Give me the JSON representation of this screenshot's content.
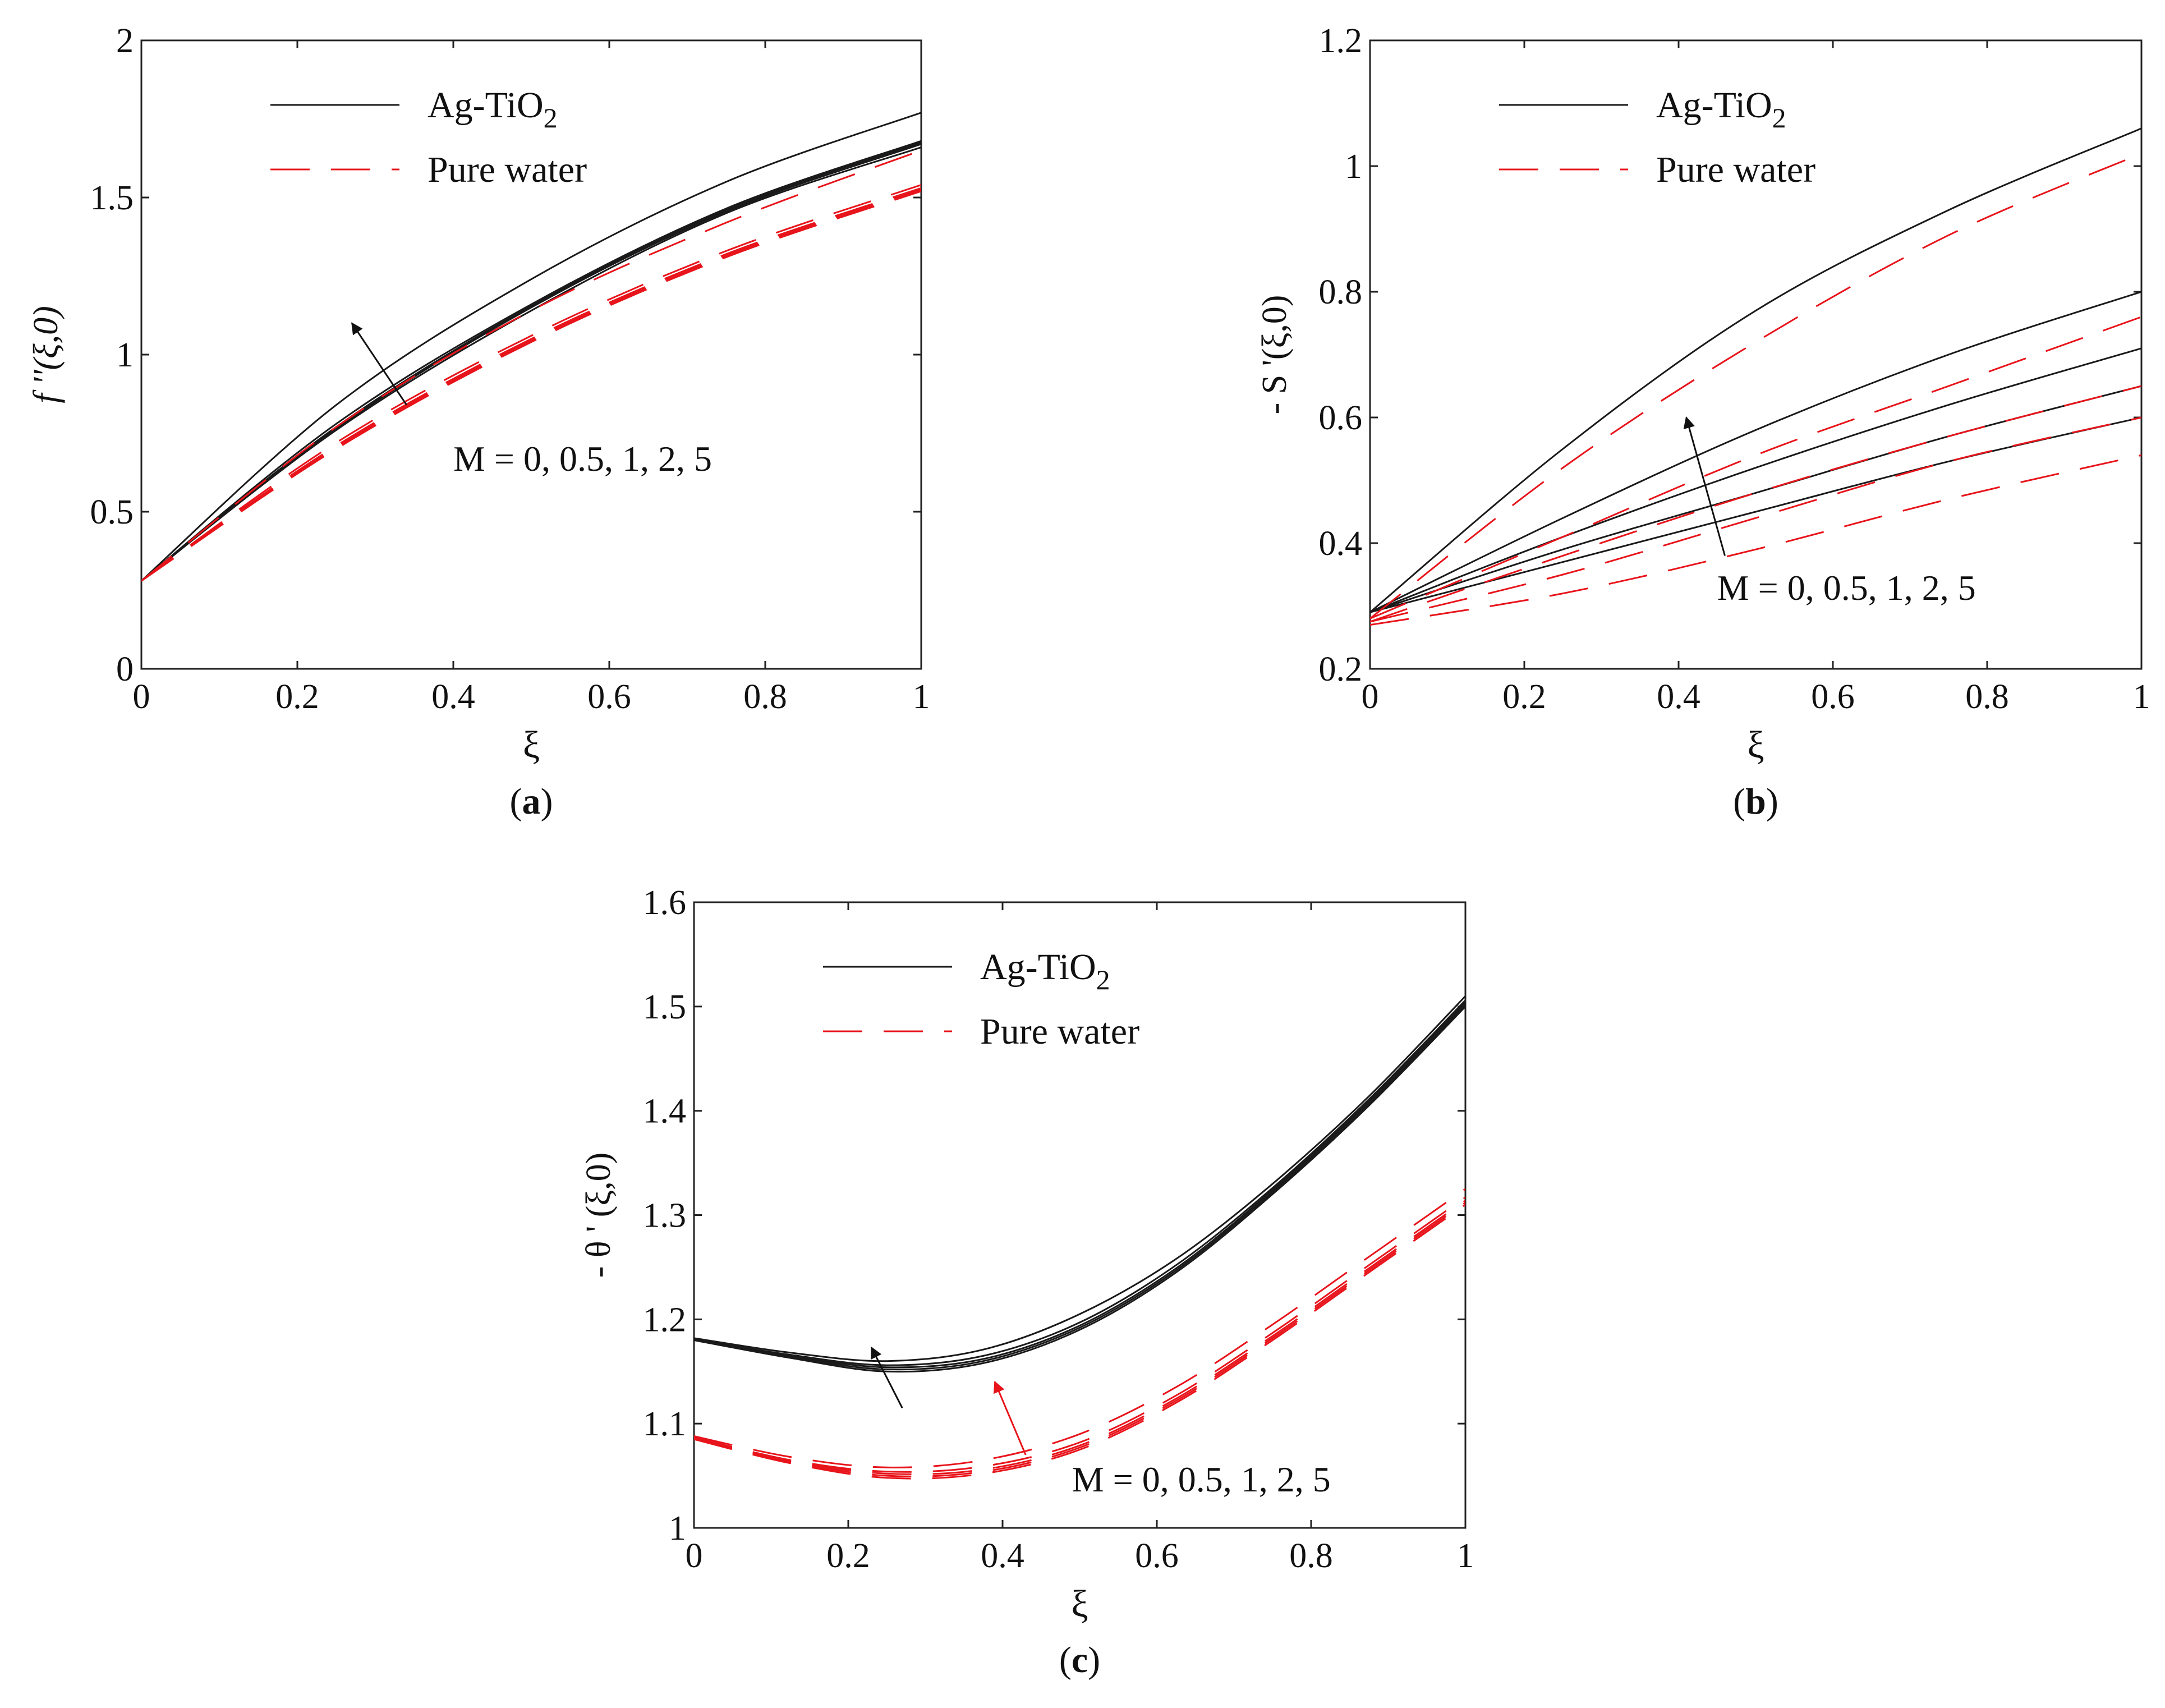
{
  "colors": {
    "nanofluid": "#1a1a1a",
    "water": "#e8141b",
    "arrow_black": "#111111",
    "arrow_red": "#e8141b",
    "axis": "#222222"
  },
  "chart_data": [
    {
      "id": "a",
      "type": "line",
      "panel_label": "a",
      "xlabel": "ξ",
      "ylabel": "f ''(ξ,0)",
      "xlim": [
        0,
        1
      ],
      "ylim": [
        0,
        2
      ],
      "xticks": [
        0,
        0.2,
        0.4,
        0.6,
        0.8,
        1
      ],
      "xtick_labels": [
        "0",
        "0.2",
        "0.4",
        "0.6",
        "0.8",
        "1"
      ],
      "yticks": [
        0,
        0.5,
        1,
        1.5,
        2
      ],
      "ytick_labels": [
        "0",
        "0.5",
        "1",
        "1.5",
        "2"
      ],
      "legend": [
        {
          "text": "Ag-TiO",
          "sub": "2",
          "style": "solid"
        },
        {
          "text": "Pure water",
          "style": "dashed"
        }
      ],
      "annotation": "M = 0, 0.5, 1, 2, 5",
      "x": [
        0,
        0.25,
        0.5,
        0.75,
        1
      ],
      "series": [
        {
          "name": "Ag-TiO2, M=0",
          "group": "nanofluid",
          "values": [
            0.28,
            0.76,
            1.14,
            1.45,
            1.66
          ]
        },
        {
          "name": "Ag-TiO2, M=0.5",
          "group": "nanofluid",
          "values": [
            0.28,
            0.765,
            1.15,
            1.455,
            1.67
          ]
        },
        {
          "name": "Ag-TiO2, M=1",
          "group": "nanofluid",
          "values": [
            0.28,
            0.77,
            1.155,
            1.46,
            1.675
          ]
        },
        {
          "name": "Ag-TiO2, M=2",
          "group": "nanofluid",
          "values": [
            0.28,
            0.78,
            1.16,
            1.465,
            1.68
          ]
        },
        {
          "name": "Ag-TiO2, M=5",
          "group": "nanofluid",
          "values": [
            0.28,
            0.84,
            1.24,
            1.55,
            1.77
          ]
        },
        {
          "name": "Pure water, M=0",
          "group": "water",
          "values": [
            0.28,
            0.7,
            1.04,
            1.31,
            1.52
          ]
        },
        {
          "name": "Pure water, M=0.5",
          "group": "water",
          "values": [
            0.28,
            0.705,
            1.045,
            1.315,
            1.525
          ]
        },
        {
          "name": "Pure water, M=1",
          "group": "water",
          "values": [
            0.28,
            0.71,
            1.05,
            1.32,
            1.53
          ]
        },
        {
          "name": "Pure water, M=2",
          "group": "water",
          "values": [
            0.28,
            0.72,
            1.06,
            1.33,
            1.54
          ]
        },
        {
          "name": "Pure water, M=5",
          "group": "water",
          "values": [
            0.28,
            0.77,
            1.14,
            1.42,
            1.65
          ]
        }
      ],
      "arrow": {
        "from": [
          0.34,
          0.84
        ],
        "to": [
          0.27,
          1.1
        ],
        "color": "arrow_black"
      }
    },
    {
      "id": "b",
      "type": "line",
      "panel_label": "b",
      "xlabel": "ξ",
      "ylabel": "- S '(ξ,0)",
      "xlim": [
        0,
        1
      ],
      "ylim": [
        0.2,
        1.2
      ],
      "xticks": [
        0,
        0.2,
        0.4,
        0.6,
        0.8,
        1
      ],
      "xtick_labels": [
        "0",
        "0.2",
        "0.4",
        "0.6",
        "0.8",
        "1"
      ],
      "yticks": [
        0.2,
        0.4,
        0.6,
        0.8,
        1,
        1.2
      ],
      "ytick_labels": [
        "0.2",
        "0.4",
        "0.6",
        "0.8",
        "1",
        "1.2"
      ],
      "legend": [
        {
          "text": "Ag-TiO",
          "sub": "2",
          "style": "solid"
        },
        {
          "text": "Pure water",
          "style": "dashed"
        }
      ],
      "annotation": "M = 0, 0.5, 1, 2, 5",
      "x": [
        0,
        0.25,
        0.5,
        0.75,
        1
      ],
      "series": [
        {
          "name": "Ag-TiO2, M=0",
          "group": "nanofluid",
          "values": [
            0.29,
            0.37,
            0.45,
            0.53,
            0.6
          ]
        },
        {
          "name": "Ag-TiO2, M=0.5",
          "group": "nanofluid",
          "values": [
            0.29,
            0.39,
            0.48,
            0.57,
            0.65
          ]
        },
        {
          "name": "Ag-TiO2, M=1",
          "group": "nanofluid",
          "values": [
            0.29,
            0.41,
            0.52,
            0.62,
            0.71
          ]
        },
        {
          "name": "Ag-TiO2, M=2",
          "group": "nanofluid",
          "values": [
            0.29,
            0.44,
            0.58,
            0.7,
            0.8
          ]
        },
        {
          "name": "Ag-TiO2, M=5",
          "group": "nanofluid",
          "values": [
            0.29,
            0.55,
            0.77,
            0.93,
            1.06
          ]
        },
        {
          "name": "Pure water, M=0",
          "group": "water",
          "values": [
            0.27,
            0.32,
            0.39,
            0.47,
            0.54
          ]
        },
        {
          "name": "Pure water, M=0.5",
          "group": "water",
          "values": [
            0.275,
            0.35,
            0.44,
            0.53,
            0.6
          ]
        },
        {
          "name": "Pure water, M=1",
          "group": "water",
          "values": [
            0.275,
            0.38,
            0.48,
            0.57,
            0.65
          ]
        },
        {
          "name": "Pure water, M=2",
          "group": "water",
          "values": [
            0.28,
            0.41,
            0.54,
            0.65,
            0.76
          ]
        },
        {
          "name": "Pure water, M=5",
          "group": "water",
          "values": [
            0.28,
            0.52,
            0.72,
            0.89,
            1.02
          ]
        }
      ],
      "arrow": {
        "from": [
          0.46,
          0.38
        ],
        "to": [
          0.41,
          0.6
        ],
        "color": "arrow_black"
      }
    },
    {
      "id": "c",
      "type": "line",
      "panel_label": "c",
      "xlabel": "ξ",
      "ylabel": "- θ ' (ξ,0)",
      "xlim": [
        0,
        1
      ],
      "ylim": [
        1,
        1.6
      ],
      "xticks": [
        0,
        0.2,
        0.4,
        0.6,
        0.8,
        1
      ],
      "xtick_labels": [
        "0",
        "0.2",
        "0.4",
        "0.6",
        "0.8",
        "1"
      ],
      "yticks": [
        1,
        1.1,
        1.2,
        1.3,
        1.4,
        1.5,
        1.6
      ],
      "ytick_labels": [
        "1",
        "1.1",
        "1.2",
        "1.3",
        "1.4",
        "1.5",
        "1.6"
      ],
      "legend": [
        {
          "text": "Ag-TiO",
          "sub": "2",
          "style": "solid"
        },
        {
          "text": "Pure water",
          "style": "dashed"
        }
      ],
      "annotation": "M = 0, 0.5, 1, 2, 5",
      "x": [
        0,
        0.125,
        0.25,
        0.375,
        0.5,
        0.625,
        0.75,
        0.875,
        1
      ],
      "series": [
        {
          "name": "Ag-TiO2, M=0",
          "group": "nanofluid",
          "values": [
            1.18,
            1.163,
            1.15,
            1.158,
            1.19,
            1.245,
            1.32,
            1.405,
            1.5
          ]
        },
        {
          "name": "Ag-TiO2, M=0.5",
          "group": "nanofluid",
          "values": [
            1.18,
            1.164,
            1.152,
            1.16,
            1.192,
            1.247,
            1.322,
            1.407,
            1.502
          ]
        },
        {
          "name": "Ag-TiO2, M=1",
          "group": "nanofluid",
          "values": [
            1.18,
            1.165,
            1.154,
            1.162,
            1.194,
            1.249,
            1.324,
            1.409,
            1.504
          ]
        },
        {
          "name": "Ag-TiO2, M=2",
          "group": "nanofluid",
          "values": [
            1.181,
            1.166,
            1.156,
            1.165,
            1.197,
            1.252,
            1.326,
            1.411,
            1.506
          ]
        },
        {
          "name": "Ag-TiO2, M=5",
          "group": "nanofluid",
          "values": [
            1.182,
            1.168,
            1.16,
            1.171,
            1.205,
            1.258,
            1.33,
            1.414,
            1.51
          ]
        },
        {
          "name": "Pure water, M=0",
          "group": "water",
          "values": [
            1.085,
            1.062,
            1.048,
            1.052,
            1.075,
            1.12,
            1.18,
            1.245,
            1.31
          ]
        },
        {
          "name": "Pure water, M=0.5",
          "group": "water",
          "values": [
            1.085,
            1.063,
            1.05,
            1.054,
            1.077,
            1.122,
            1.182,
            1.247,
            1.312
          ]
        },
        {
          "name": "Pure water, M=1",
          "group": "water",
          "values": [
            1.086,
            1.064,
            1.052,
            1.056,
            1.079,
            1.124,
            1.184,
            1.249,
            1.314
          ]
        },
        {
          "name": "Pure water, M=2",
          "group": "water",
          "values": [
            1.087,
            1.065,
            1.054,
            1.059,
            1.082,
            1.127,
            1.187,
            1.252,
            1.317
          ]
        },
        {
          "name": "Pure water, M=5",
          "group": "water",
          "values": [
            1.088,
            1.068,
            1.058,
            1.065,
            1.09,
            1.135,
            1.195,
            1.26,
            1.325
          ]
        }
      ],
      "arrow": {
        "from": [
          0.27,
          1.115
        ],
        "to": [
          0.23,
          1.173
        ],
        "color": "arrow_black"
      },
      "arrow2": {
        "from": [
          0.43,
          1.07
        ],
        "to": [
          0.39,
          1.14
        ],
        "color": "arrow_red"
      }
    }
  ]
}
